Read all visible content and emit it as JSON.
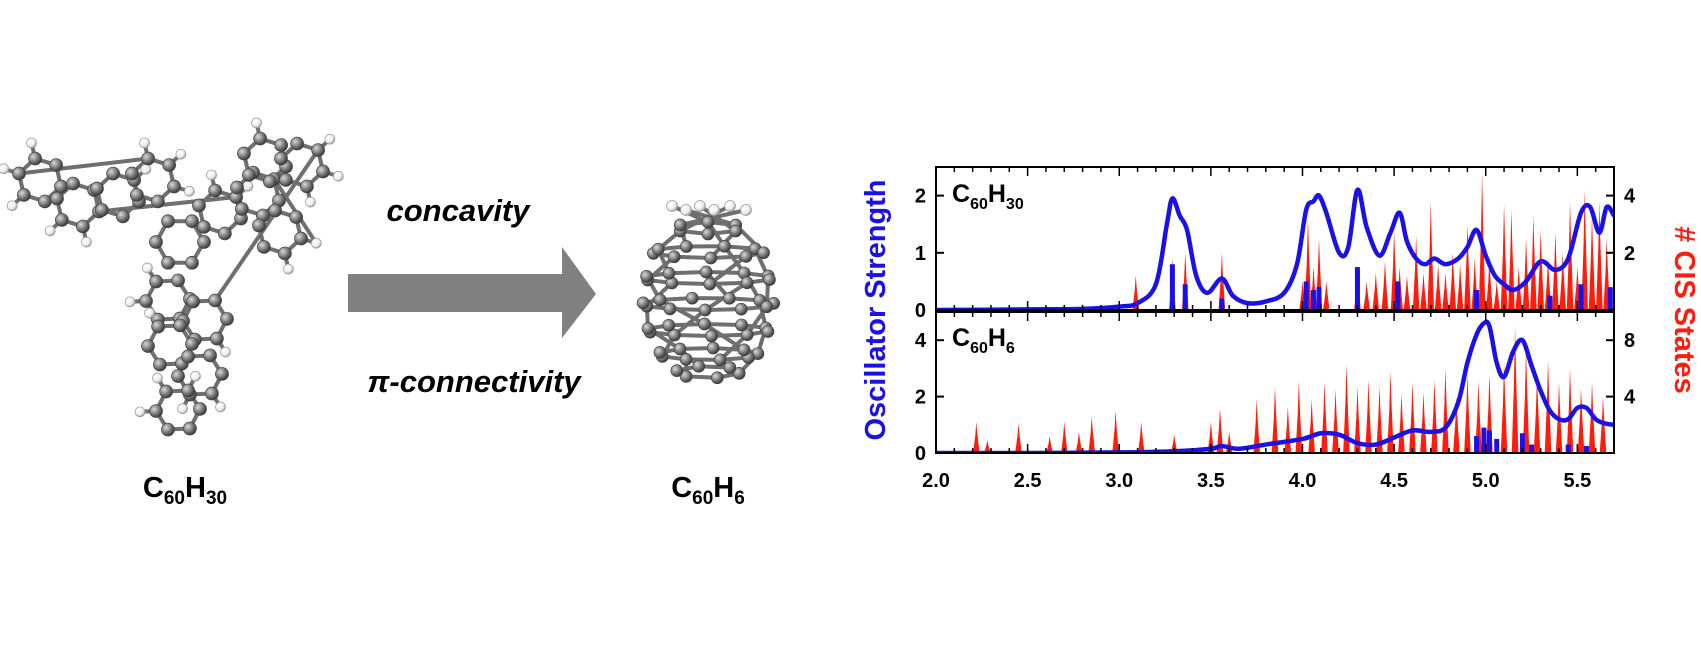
{
  "scheme": {
    "left_molecule": {
      "base": "C",
      "sub1": "60",
      "mid": "H",
      "sub2": "30"
    },
    "right_molecule": {
      "base": "C",
      "sub1": "60",
      "mid": "H",
      "sub2": "6"
    },
    "arrow_top_label": "concavity",
    "arrow_bottom_label": "π-connectivity",
    "colors": {
      "arrow": "#808080",
      "carbon": "#7a7a7a",
      "hydrogen": "#f0f0f0",
      "bond": "#8c8c8c"
    }
  },
  "chart_data": [
    {
      "type": "line",
      "panel": "top",
      "label": {
        "base": "C",
        "sub1": "60",
        "mid": "H",
        "sub2": "30"
      },
      "xlabel": "",
      "ylabel_left": "Oscillator Strength",
      "ylabel_right": "# CIS States",
      "xlim": [
        2.0,
        5.7
      ],
      "ylim_left": [
        0,
        2.5
      ],
      "ylim_right": [
        0,
        5
      ],
      "left_ticks": [
        0,
        1,
        2
      ],
      "right_ticks": [
        2,
        4
      ],
      "series": [
        {
          "name": "Oscillator Strength (broadened)",
          "axis": "left",
          "color": "#1a10e8",
          "x": [
            2.0,
            2.5,
            2.8,
            3.0,
            3.1,
            3.2,
            3.26,
            3.29,
            3.33,
            3.37,
            3.42,
            3.48,
            3.56,
            3.62,
            3.7,
            3.8,
            3.9,
            3.97,
            4.02,
            4.06,
            4.09,
            4.13,
            4.2,
            4.25,
            4.3,
            4.35,
            4.42,
            4.48,
            4.53,
            4.57,
            4.62,
            4.67,
            4.72,
            4.78,
            4.85,
            4.9,
            4.95,
            5.0,
            5.05,
            5.1,
            5.15,
            5.22,
            5.3,
            5.38,
            5.45,
            5.52,
            5.57,
            5.62,
            5.66,
            5.7
          ],
          "y": [
            0,
            0.01,
            0.02,
            0.06,
            0.12,
            0.45,
            1.5,
            1.95,
            1.65,
            1.4,
            0.6,
            0.3,
            0.55,
            0.25,
            0.12,
            0.15,
            0.3,
            0.8,
            1.75,
            1.9,
            2.0,
            1.7,
            1.0,
            1.1,
            2.1,
            1.45,
            0.95,
            1.35,
            1.7,
            1.2,
            0.9,
            0.8,
            0.9,
            0.8,
            0.9,
            1.1,
            1.4,
            0.95,
            0.6,
            0.45,
            0.35,
            0.5,
            0.85,
            0.7,
            0.9,
            1.7,
            1.8,
            1.35,
            1.8,
            1.65
          ]
        },
        {
          "name": "Oscillator Strength (sticks)",
          "axis": "left",
          "color": "#1a10e8",
          "x": [
            3.29,
            3.36,
            3.56,
            4.02,
            4.06,
            4.09,
            4.3,
            4.52,
            4.95,
            5.35,
            5.52,
            5.68
          ],
          "y": [
            0.8,
            0.45,
            0.2,
            0.5,
            0.35,
            0.4,
            0.75,
            0.5,
            0.35,
            0.25,
            0.45,
            0.4
          ]
        },
        {
          "name": "# CIS States",
          "axis": "right",
          "color": "#ff1c0c",
          "x": [
            3.09,
            3.29,
            3.36,
            3.56,
            4.0,
            4.03,
            4.06,
            4.09,
            4.13,
            4.3,
            4.35,
            4.4,
            4.45,
            4.5,
            4.53,
            4.57,
            4.62,
            4.66,
            4.7,
            4.74,
            4.78,
            4.82,
            4.86,
            4.9,
            4.94,
            4.98,
            5.02,
            5.06,
            5.1,
            5.14,
            5.18,
            5.22,
            5.26,
            5.3,
            5.34,
            5.38,
            5.42,
            5.46,
            5.5,
            5.54,
            5.58,
            5.62,
            5.66
          ],
          "y": [
            1.2,
            1.8,
            2,
            2,
            1,
            3.2,
            1.5,
            2.5,
            1,
            1.5,
            1,
            1.3,
            1.7,
            2.8,
            1.5,
            1.2,
            2.6,
            1.3,
            3.8,
            1.6,
            1.3,
            2,
            1.6,
            3,
            1.8,
            4.8,
            1.8,
            1,
            3.7,
            3.5,
            1.5,
            2.5,
            3.3,
            2.8,
            1.8,
            2.7,
            2,
            3.8,
            1.5,
            4.2,
            3.3,
            3.8,
            2.5
          ]
        }
      ]
    },
    {
      "type": "line",
      "panel": "bottom",
      "label": {
        "base": "C",
        "sub1": "60",
        "mid": "H",
        "sub2": "6"
      },
      "xlabel": "",
      "xlim": [
        2.0,
        5.7
      ],
      "ylim_left": [
        0,
        5
      ],
      "ylim_right": [
        0,
        10
      ],
      "left_ticks": [
        0,
        2,
        4
      ],
      "right_ticks": [
        4,
        8
      ],
      "x_ticks": [
        2.0,
        2.5,
        3.0,
        3.5,
        4.0,
        4.5,
        5.0,
        5.5
      ],
      "x_tick_labels": [
        "2.0",
        "2.5",
        "3.0",
        "3.5",
        "4.0",
        "4.5",
        "5.0",
        "5.5"
      ],
      "series": [
        {
          "name": "Oscillator Strength (broadened)",
          "axis": "left",
          "color": "#1a10e8",
          "x": [
            2.0,
            2.5,
            3.0,
            3.3,
            3.5,
            3.56,
            3.65,
            3.8,
            4.0,
            4.1,
            4.2,
            4.3,
            4.4,
            4.5,
            4.6,
            4.7,
            4.78,
            4.85,
            4.9,
            4.95,
            4.99,
            5.02,
            5.06,
            5.1,
            5.15,
            5.2,
            5.25,
            5.3,
            5.35,
            5.4,
            5.45,
            5.5,
            5.55,
            5.6,
            5.65,
            5.7
          ],
          "y": [
            0,
            0,
            0.02,
            0.06,
            0.15,
            0.25,
            0.15,
            0.3,
            0.5,
            0.7,
            0.65,
            0.35,
            0.3,
            0.55,
            0.8,
            0.75,
            0.9,
            1.8,
            3.2,
            4.2,
            4.6,
            4.5,
            3.2,
            2.7,
            3.6,
            4.0,
            3.1,
            2.2,
            1.5,
            1.2,
            1.2,
            1.6,
            1.6,
            1.2,
            1.05,
            1.0
          ]
        },
        {
          "name": "Oscillator Strength (sticks)",
          "axis": "left",
          "color": "#1a10e8",
          "x": [
            4.95,
            4.99,
            5.02,
            5.06,
            5.2,
            5.25,
            5.45,
            5.55
          ],
          "y": [
            0.6,
            0.9,
            0.8,
            0.5,
            0.7,
            0.3,
            0.3,
            0.25
          ]
        },
        {
          "name": "# CIS States",
          "axis": "right",
          "color": "#ff1c0c",
          "x": [
            2.22,
            2.28,
            2.45,
            2.62,
            2.7,
            2.78,
            2.85,
            2.98,
            3.12,
            3.3,
            3.5,
            3.55,
            3.6,
            3.75,
            3.85,
            3.92,
            3.98,
            4.05,
            4.12,
            4.18,
            4.24,
            4.3,
            4.36,
            4.42,
            4.48,
            4.54,
            4.6,
            4.66,
            4.72,
            4.78,
            4.84,
            4.9,
            4.96,
            5.02,
            5.1,
            5.16,
            5.22,
            5.28,
            5.34,
            5.4,
            5.46,
            5.52,
            5.58,
            5.64
          ],
          "y": [
            2.2,
            0.9,
            2.1,
            1.2,
            2.2,
            1.5,
            2.6,
            3.0,
            2.2,
            1.3,
            2.2,
            3.2,
            1.5,
            3.8,
            4.7,
            3.3,
            5.1,
            3.8,
            5.0,
            4.5,
            6.3,
            4.7,
            5.2,
            4.7,
            5.8,
            4.2,
            5.0,
            4.3,
            5.2,
            6.0,
            4.0,
            5.6,
            5.1,
            5.6,
            6.4,
            9.0,
            7.5,
            5.5,
            6.6,
            5.0,
            6.0,
            4.6,
            5.0,
            4.0
          ]
        }
      ]
    }
  ]
}
